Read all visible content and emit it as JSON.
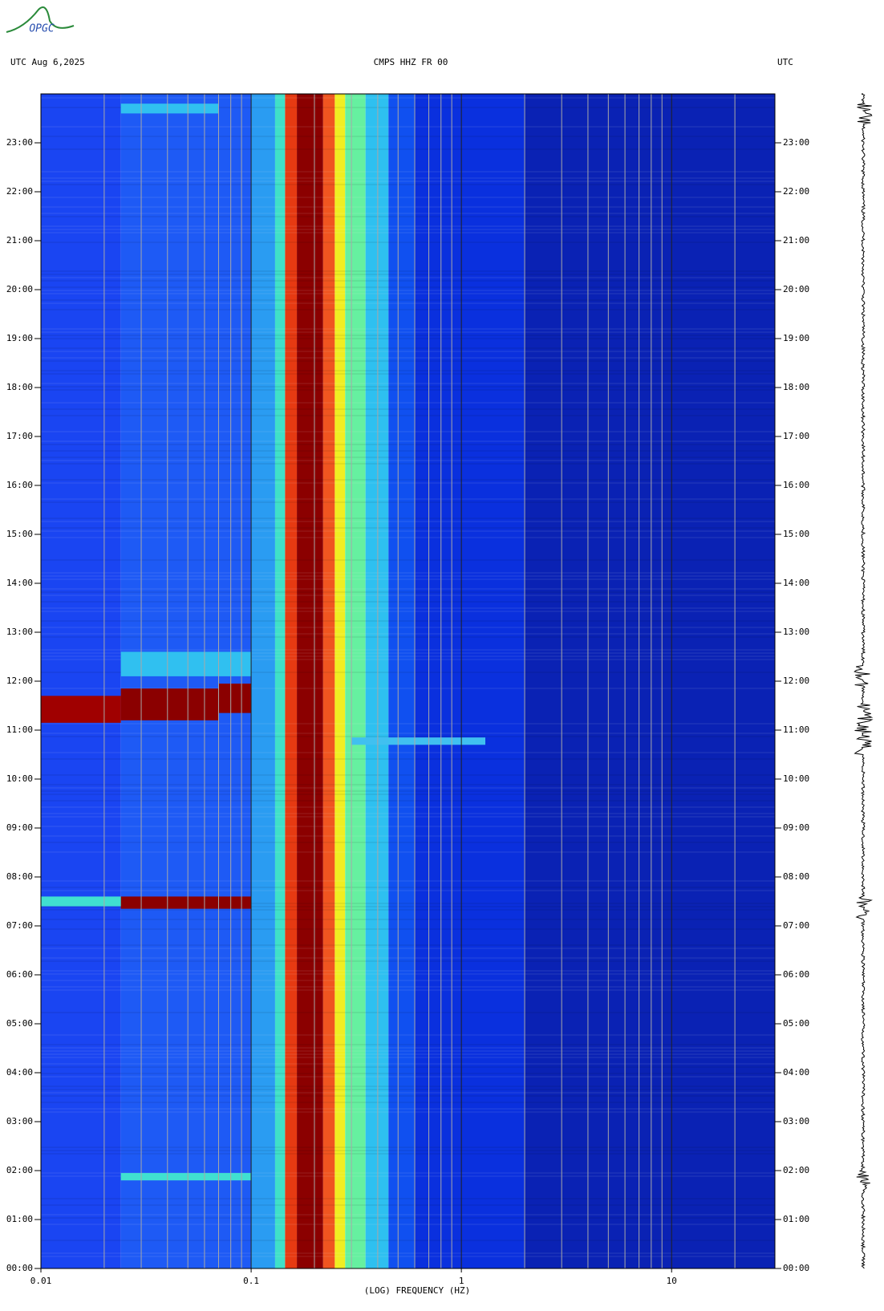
{
  "chart_data": {
    "type": "spectrogram",
    "logo": "OPGC",
    "title_left": "UTC  Aug 6,2025",
    "title": "CMPS HHZ FR 00",
    "title_right": "UTC",
    "x_label": "(LOG) FREQUENCY (HZ)",
    "xscale": "log",
    "xlim": [
      0.01,
      31
    ],
    "xticks": [
      0.01,
      0.1,
      1,
      10
    ],
    "xminor": [
      0.02,
      0.03,
      0.04,
      0.05,
      0.06,
      0.07,
      0.08,
      0.09,
      0.2,
      0.3,
      0.4,
      0.5,
      0.6,
      0.7,
      0.8,
      0.9,
      2,
      3,
      4,
      5,
      6,
      7,
      8,
      9,
      20
    ],
    "ylim": [
      0,
      24
    ],
    "yticks": [
      {
        "value": 0,
        "label": "00:00"
      },
      {
        "value": 1,
        "label": "01:00"
      },
      {
        "value": 2,
        "label": "02:00"
      },
      {
        "value": 3,
        "label": "03:00"
      },
      {
        "value": 4,
        "label": "04:00"
      },
      {
        "value": 5,
        "label": "05:00"
      },
      {
        "value": 6,
        "label": "06:00"
      },
      {
        "value": 7,
        "label": "07:00"
      },
      {
        "value": 8,
        "label": "08:00"
      },
      {
        "value": 9,
        "label": "09:00"
      },
      {
        "value": 10,
        "label": "10:00"
      },
      {
        "value": 11,
        "label": "11:00"
      },
      {
        "value": 12,
        "label": "12:00"
      },
      {
        "value": 13,
        "label": "13:00"
      },
      {
        "value": 14,
        "label": "14:00"
      },
      {
        "value": 15,
        "label": "15:00"
      },
      {
        "value": 16,
        "label": "16:00"
      },
      {
        "value": 17,
        "label": "17:00"
      },
      {
        "value": 18,
        "label": "18:00"
      },
      {
        "value": 19,
        "label": "19:00"
      },
      {
        "value": 20,
        "label": "20:00"
      },
      {
        "value": 21,
        "label": "21:00"
      },
      {
        "value": 22,
        "label": "22:00"
      },
      {
        "value": 23,
        "label": "23:00"
      }
    ],
    "bands": [
      {
        "from": 0.01,
        "to": 0.024,
        "color": "#1a45f2"
      },
      {
        "from": 0.024,
        "to": 0.1,
        "color": "#1e5af5"
      },
      {
        "from": 0.1,
        "to": 0.13,
        "color": "#2a9cf2"
      },
      {
        "from": 0.13,
        "to": 0.145,
        "color": "#40e0c8"
      },
      {
        "from": 0.145,
        "to": 0.165,
        "color": "#e63a12"
      },
      {
        "from": 0.165,
        "to": 0.22,
        "color": "#8b0000"
      },
      {
        "from": 0.22,
        "to": 0.25,
        "color": "#f05520"
      },
      {
        "from": 0.25,
        "to": 0.28,
        "color": "#f0ee22"
      },
      {
        "from": 0.28,
        "to": 0.35,
        "color": "#66f0a0"
      },
      {
        "from": 0.35,
        "to": 0.45,
        "color": "#2ec0f0"
      },
      {
        "from": 0.45,
        "to": 0.6,
        "color": "#1050f0"
      },
      {
        "from": 0.6,
        "to": 2,
        "color": "#0a30de"
      },
      {
        "from": 2,
        "to": 31,
        "color": "#0a22b4"
      }
    ],
    "events": [
      {
        "start": 11.15,
        "end": 11.7,
        "from": 0.01,
        "to": 0.024,
        "color": "#a00000"
      },
      {
        "start": 11.2,
        "end": 11.85,
        "from": 0.024,
        "to": 0.07,
        "color": "#8b0000"
      },
      {
        "start": 11.35,
        "end": 11.95,
        "from": 0.07,
        "to": 0.1,
        "color": "#8b0000"
      },
      {
        "start": 12.1,
        "end": 12.6,
        "from": 0.024,
        "to": 0.1,
        "color": "#30c0f0"
      },
      {
        "start": 10.7,
        "end": 10.85,
        "from": 0.3,
        "to": 1.3,
        "color": "#40c0f0"
      },
      {
        "start": 7.35,
        "end": 7.6,
        "from": 0.024,
        "to": 0.1,
        "color": "#8b0000"
      },
      {
        "start": 7.4,
        "end": 7.6,
        "from": 0.01,
        "to": 0.024,
        "color": "#40e0d0"
      },
      {
        "start": 1.8,
        "end": 1.95,
        "from": 0.024,
        "to": 0.1,
        "color": "#40e0d0"
      },
      {
        "start": 23.6,
        "end": 23.8,
        "from": 0.024,
        "to": 0.07,
        "color": "#30c0f0"
      }
    ]
  }
}
